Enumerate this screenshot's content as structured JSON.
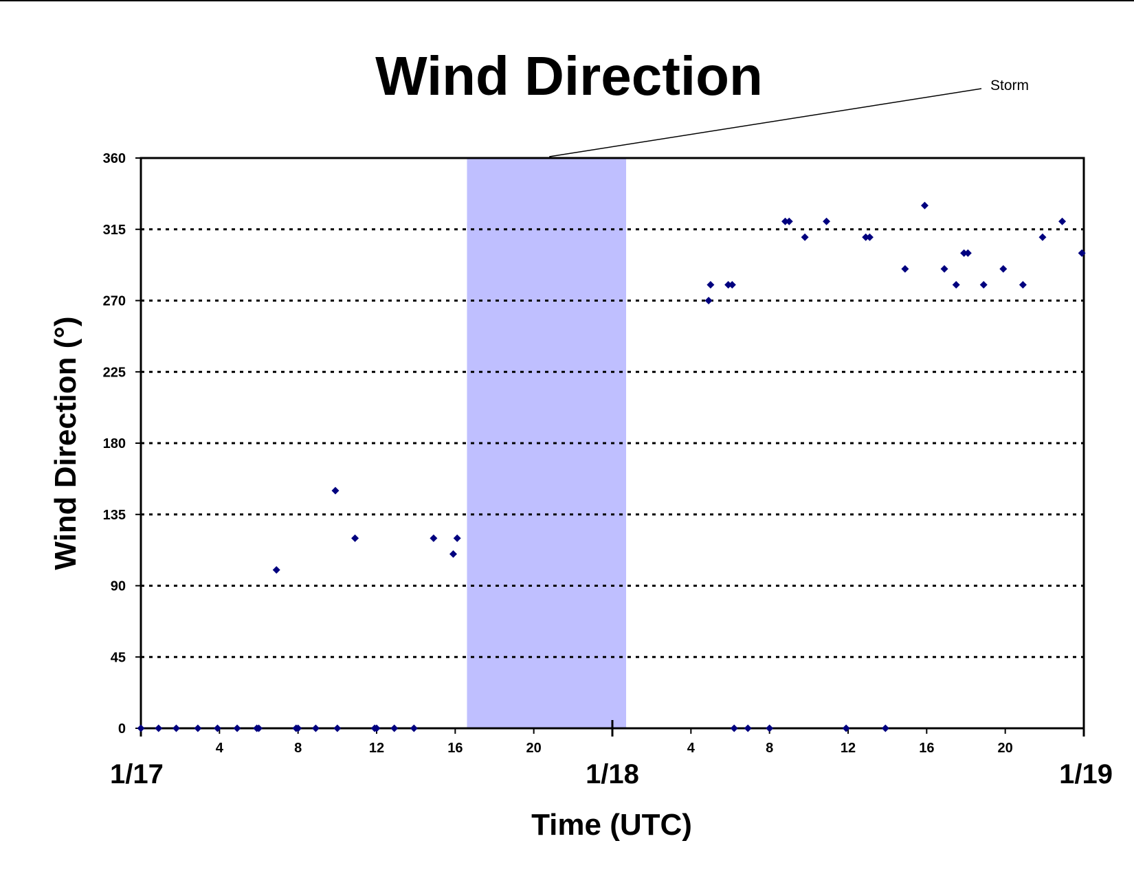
{
  "chart_data": {
    "type": "scatter",
    "title": "Wind Direction",
    "xlabel": "Time (UTC)",
    "ylabel": "Wind Direction (°)",
    "xlim": [
      "1/17 00:00",
      "1/19 00:00"
    ],
    "ylim": [
      0,
      360
    ],
    "y_ticks": [
      0,
      45,
      90,
      135,
      180,
      225,
      270,
      315,
      360
    ],
    "x_major_ticks": [
      {
        "label": "1/17",
        "hours": 0
      },
      {
        "label": "1/18",
        "hours": 24
      },
      {
        "label": "1/19",
        "hours": 48
      }
    ],
    "x_minor_ticks": [
      {
        "label": "4",
        "hours": 4
      },
      {
        "label": "8",
        "hours": 8
      },
      {
        "label": "12",
        "hours": 12
      },
      {
        "label": "16",
        "hours": 16
      },
      {
        "label": "20",
        "hours": 20
      },
      {
        "label": "4",
        "hours": 28
      },
      {
        "label": "8",
        "hours": 32
      },
      {
        "label": "12",
        "hours": 36
      },
      {
        "label": "16",
        "hours": 40
      },
      {
        "label": "20",
        "hours": 44
      }
    ],
    "grid": "horizontal dotted",
    "marker_color": "#00007f",
    "shaded_region": {
      "start_hours": 16.6,
      "end_hours": 24.7,
      "color": "#bfbfff",
      "label": "Storm"
    },
    "series": [
      {
        "points": [
          [
            0,
            0
          ],
          [
            0.9,
            0
          ],
          [
            1.8,
            0
          ],
          [
            2.9,
            0
          ],
          [
            3.9,
            0
          ],
          [
            4.9,
            0
          ],
          [
            5.9,
            0
          ],
          [
            6.0,
            0
          ],
          [
            6.9,
            100
          ],
          [
            7.9,
            0
          ],
          [
            8.0,
            0
          ],
          [
            8.9,
            0
          ],
          [
            9.9,
            150
          ],
          [
            10.0,
            0
          ],
          [
            10.9,
            120
          ],
          [
            11.9,
            0
          ],
          [
            12.0,
            0
          ],
          [
            12.9,
            0
          ],
          [
            13.9,
            0
          ],
          [
            14.9,
            120
          ],
          [
            15.9,
            110
          ],
          [
            16.1,
            120
          ],
          [
            28.9,
            270
          ],
          [
            29.0,
            280
          ],
          [
            29.9,
            280
          ],
          [
            30.1,
            280
          ],
          [
            30.2,
            0
          ],
          [
            30.9,
            0
          ],
          [
            32.0,
            0
          ],
          [
            32.8,
            320
          ],
          [
            33.0,
            320
          ],
          [
            33.8,
            310
          ],
          [
            34.9,
            320
          ],
          [
            35.9,
            0
          ],
          [
            36.9,
            310
          ],
          [
            37.1,
            310
          ],
          [
            37.9,
            0
          ],
          [
            38.9,
            290
          ],
          [
            39.9,
            330
          ],
          [
            40.9,
            290
          ],
          [
            41.5,
            280
          ],
          [
            41.9,
            300
          ],
          [
            42.1,
            300
          ],
          [
            42.9,
            280
          ],
          [
            43.9,
            290
          ],
          [
            44.9,
            280
          ],
          [
            45.9,
            310
          ],
          [
            46.9,
            320
          ],
          [
            47.9,
            300
          ]
        ]
      }
    ]
  }
}
